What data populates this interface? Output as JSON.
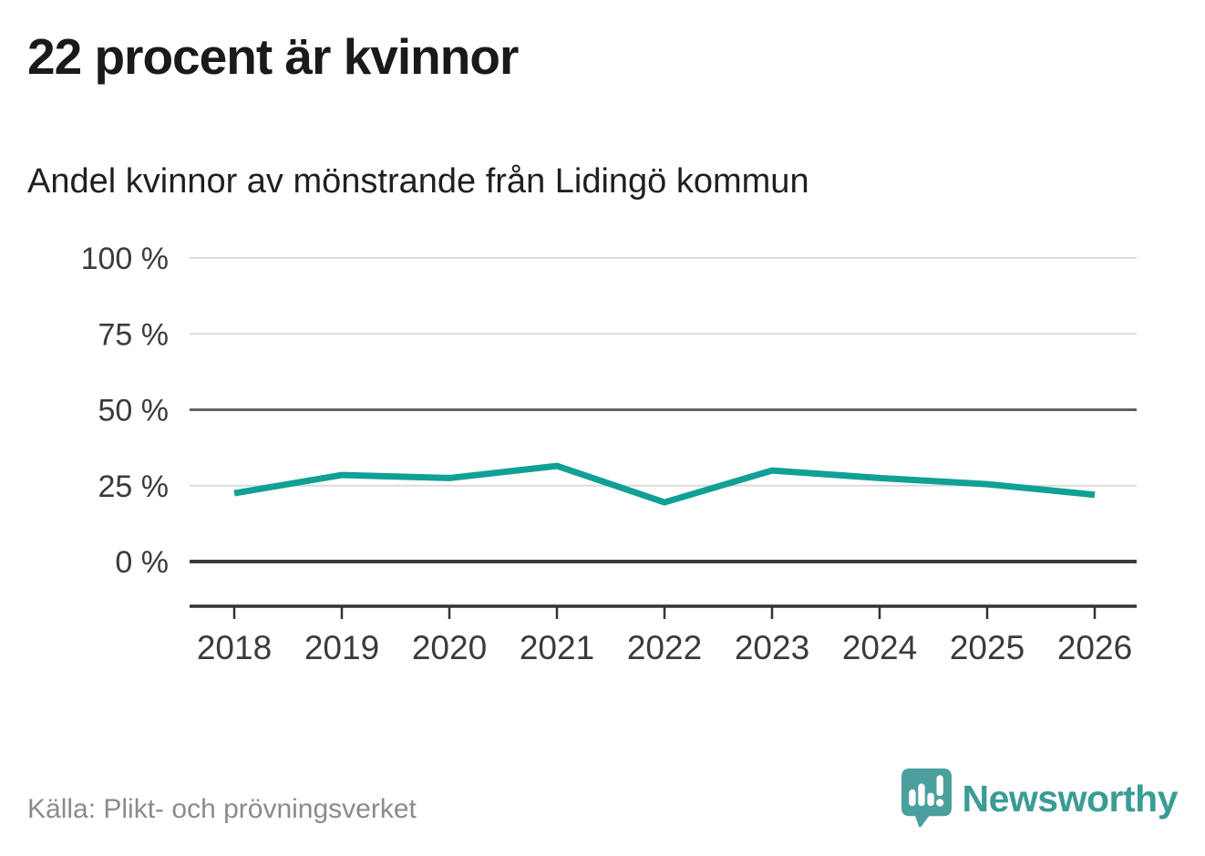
{
  "header": {
    "title": "22 procent är kvinnor"
  },
  "chart_data": {
    "type": "line",
    "title": "Andel kvinnor av mönstrande från Lidingö kommun",
    "x": [
      "2018",
      "2019",
      "2020",
      "2021",
      "2022",
      "2023",
      "2024",
      "2025",
      "2026"
    ],
    "series": [
      {
        "name": "Andel kvinnor av mönstrande",
        "values": [
          22.5,
          28.5,
          27.5,
          31.5,
          19.5,
          30,
          27.5,
          25.5,
          22
        ]
      }
    ],
    "unit": "%",
    "xlabel": "",
    "ylabel": "",
    "ylim": [
      0,
      100
    ],
    "yticks": [
      0,
      25,
      50,
      75,
      100
    ],
    "ytick_labels": [
      "0 %",
      "25 %",
      "50 %",
      "75 %",
      "100 %"
    ],
    "grid": "horizontal",
    "legend": "none"
  },
  "footer": {
    "source": "Källa: Plikt- och prövningsverket",
    "brand": "Newsworthy"
  },
  "colors": {
    "line": "#11a096",
    "grid_light": "#dcdcdc",
    "grid_mid": "#606066",
    "grid_zero": "#3b3b3d",
    "axis": "#333333",
    "axis_text": "#3b3b3b",
    "title_text": "#1a1a1a",
    "source_text": "#8b8b8b",
    "logo_teal": "#4ba09d",
    "wordmark_teal": "#3a9c95"
  }
}
